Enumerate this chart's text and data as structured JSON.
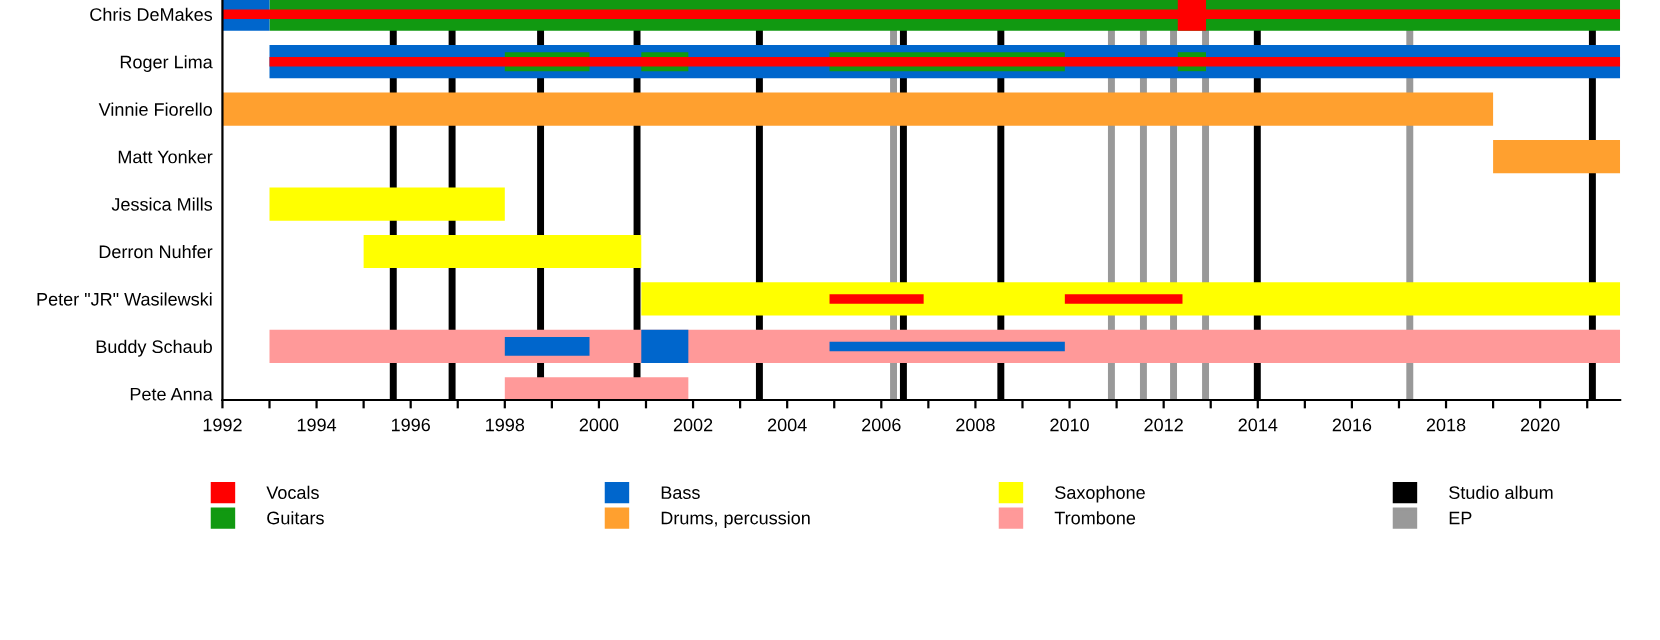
{
  "chart_data": {
    "type": "bar",
    "orientation": "horizontal",
    "legend": "bottom",
    "grid": false,
    "categories": [
      "Chris DeMakes",
      "Roger Lima",
      "Vinnie Fiorello",
      "Matt Yonker",
      "Jessica Mills",
      "Derron Nuhfer",
      "Peter \"JR\" Wasilewski",
      "Buddy Schaub",
      "Pete Anna"
    ],
    "xlim": [
      1992,
      2021.7
    ],
    "xticks": [
      1992,
      {
        "value": 1993,
        "label": null
      },
      1994,
      {
        "value": 1995,
        "label": null
      },
      1996,
      {
        "value": 1997,
        "label": null
      },
      1998,
      {
        "value": 1999,
        "label": null
      },
      2000,
      {
        "value": 2001,
        "label": null
      },
      2002,
      {
        "value": 2003,
        "label": null
      },
      2004,
      {
        "value": 2005,
        "label": null
      },
      2006,
      {
        "value": 2007,
        "label": null
      },
      2008,
      {
        "value": 2009,
        "label": null
      },
      2010,
      {
        "value": 2011,
        "label": null
      },
      2012,
      {
        "value": 2013,
        "label": null
      },
      2014,
      {
        "value": 2015,
        "label": null
      },
      2016,
      {
        "value": 2017,
        "label": null
      },
      2018,
      {
        "value": 2019,
        "label": null
      },
      2020,
      {
        "value": 2021,
        "label": null
      }
    ],
    "series": [
      {
        "name": "Vocals",
        "color": "#ff0000",
        "values": [
          null,
          null,
          null,
          null,
          null,
          null,
          null,
          null,
          null
        ],
        "base": [
          null,
          null,
          null,
          null,
          null,
          null,
          null,
          null,
          null
        ]
      },
      {
        "name": "Guitars",
        "color": "#119911",
        "values": [
          28.7,
          null,
          null,
          null,
          null,
          null,
          null,
          null,
          null
        ],
        "base": [
          1993,
          null,
          null,
          null,
          null,
          null,
          null,
          null,
          null
        ]
      },
      {
        "name": "Bass",
        "color": "#0066cc",
        "values": [
          1,
          28.7,
          null,
          null,
          null,
          null,
          null,
          null,
          null
        ],
        "base": [
          1992,
          1993,
          null,
          null,
          null,
          null,
          null,
          null,
          null
        ]
      },
      {
        "name": "Drums, percussion",
        "color": "#ffa02f",
        "values": [
          null,
          null,
          27.0,
          2.7,
          null,
          null,
          null,
          null,
          null
        ],
        "base": [
          null,
          null,
          1992,
          2019.0,
          null,
          null,
          null,
          null,
          null
        ]
      },
      {
        "name": "Saxophone",
        "color": "#ffff00",
        "values": [
          null,
          null,
          null,
          null,
          5.0,
          5.9,
          20.8,
          null,
          null
        ],
        "base": [
          null,
          null,
          null,
          null,
          1993,
          1995.0,
          2000.9,
          null,
          null
        ]
      },
      {
        "name": "Trombone",
        "color": "#ff9999",
        "values": [
          null,
          null,
          null,
          null,
          null,
          null,
          null,
          28.7,
          3.9
        ],
        "base": [
          null,
          null,
          null,
          null,
          null,
          null,
          null,
          1993,
          1998.0
        ]
      },
      {
        "color": "#0066cc",
        "values": [
          null,
          null,
          null,
          null,
          null,
          null,
          null,
          1.0,
          null
        ],
        "base": [
          null,
          null,
          null,
          null,
          null,
          null,
          null,
          2000.9,
          null
        ]
      },
      {
        "color": "#ff0000",
        "values": [
          0.6,
          null,
          null,
          null,
          null,
          null,
          null,
          null,
          null
        ],
        "base": [
          2012.3,
          null,
          null,
          null,
          null,
          null,
          null,
          null,
          null
        ]
      },
      {
        "color": "#119911",
        "values": [
          null,
          1.8,
          null,
          null,
          null,
          null,
          null,
          null,
          null
        ],
        "base": [
          null,
          1998.0,
          null,
          null,
          null,
          null,
          null,
          null,
          null
        ]
      },
      {
        "color": "#119911",
        "values": [
          null,
          1.0,
          null,
          null,
          null,
          null,
          null,
          null,
          null
        ],
        "base": [
          null,
          2000.9,
          null,
          null,
          null,
          null,
          null,
          null,
          null
        ]
      },
      {
        "color": "#119911",
        "values": [
          null,
          5.0,
          null,
          null,
          null,
          null,
          null,
          null,
          null
        ],
        "base": [
          null,
          2004.9,
          null,
          null,
          null,
          null,
          null,
          null,
          null
        ]
      },
      {
        "color": "#119911",
        "values": [
          null,
          0.6,
          null,
          null,
          null,
          null,
          null,
          null,
          null
        ],
        "base": [
          null,
          2012.3,
          null,
          null,
          null,
          null,
          null,
          null,
          null
        ]
      },
      {
        "color": "#0066cc",
        "values": [
          null,
          null,
          null,
          null,
          null,
          null,
          null,
          1.8,
          null
        ],
        "base": [
          null,
          null,
          null,
          null,
          null,
          null,
          null,
          1998.0,
          null
        ]
      },
      {
        "color": "#ff0000",
        "values": [
          29.7,
          28.7,
          null,
          null,
          null,
          null,
          2.0,
          null,
          null
        ],
        "base": [
          1992,
          1993,
          null,
          null,
          null,
          null,
          2004.9,
          null,
          null
        ]
      },
      {
        "color": "#ff0000",
        "values": [
          null,
          null,
          null,
          null,
          null,
          null,
          2.5,
          null,
          null
        ],
        "base": [
          null,
          null,
          null,
          null,
          null,
          null,
          2009.9,
          null,
          null
        ]
      },
      {
        "color": "#0066cc",
        "values": [
          null,
          null,
          null,
          null,
          null,
          null,
          null,
          5.0,
          null
        ],
        "base": [
          null,
          null,
          null,
          null,
          null,
          null,
          null,
          2004.9,
          null
        ]
      }
    ],
    "ref_lines": [
      {
        "axis": "x",
        "value": 1995.63,
        "label": "Studio album",
        "color": "#000000"
      },
      {
        "axis": "x",
        "value": 1996.88,
        "color": "#000000"
      },
      {
        "axis": "x",
        "value": 1998.76,
        "color": "#000000"
      },
      {
        "axis": "x",
        "value": 2000.81,
        "color": "#000000"
      },
      {
        "axis": "x",
        "value": 2003.41,
        "color": "#000000"
      },
      {
        "axis": "x",
        "value": 2006.47,
        "color": "#000000"
      },
      {
        "axis": "x",
        "value": 2008.54,
        "color": "#000000"
      },
      {
        "axis": "x",
        "value": 2013.99,
        "color": "#000000"
      },
      {
        "axis": "x",
        "value": 2021.11,
        "color": "#000000"
      },
      {
        "axis": "x",
        "value": 2006.26,
        "label": "EP",
        "color": "#999999"
      },
      {
        "axis": "x",
        "value": 2010.89,
        "color": "#999999"
      },
      {
        "axis": "x",
        "value": 2011.57,
        "color": "#999999"
      },
      {
        "axis": "x",
        "value": 2012.21,
        "color": "#999999"
      },
      {
        "axis": "x",
        "value": 2012.89,
        "color": "#999999"
      },
      {
        "axis": "x",
        "value": 2017.23,
        "color": "#999999"
      }
    ]
  }
}
